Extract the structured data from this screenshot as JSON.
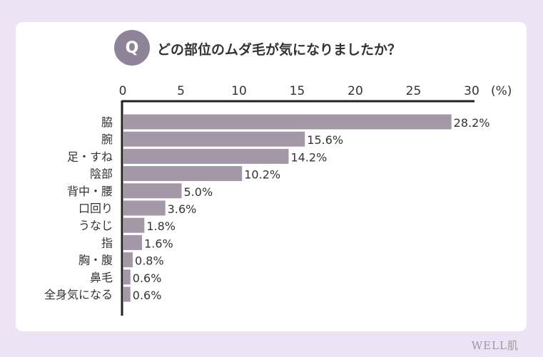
{
  "question": {
    "badge": "Q",
    "text": "どの部位のムダ毛が気になりましたか？"
  },
  "brand": "WELL肌",
  "colors": {
    "bar": "#a497a8",
    "badge": "#8f8399",
    "background": "#ece4f5",
    "card": "#ffffff"
  },
  "chart_data": {
    "type": "bar",
    "orientation": "horizontal",
    "title": "どの部位のムダ毛が気になりましたか？",
    "unit": "(%)",
    "xlim": [
      0,
      30
    ],
    "ticks": [
      0,
      5,
      10,
      15,
      20,
      25,
      30
    ],
    "categories": [
      "脇",
      "腕",
      "足・すね",
      "陰部",
      "背中・腰",
      "口回り",
      "うなじ",
      "指",
      "胸・腹",
      "鼻毛",
      "全身気になる"
    ],
    "values": [
      28.2,
      15.6,
      14.2,
      10.2,
      5.0,
      3.6,
      1.8,
      1.6,
      0.8,
      0.6,
      0.6
    ],
    "labels": [
      "28.2%",
      "15.6%",
      "14.2%",
      "10.2%",
      "5.0%",
      "3.6%",
      "1.8%",
      "1.6%",
      "0.8%",
      "0.6%",
      "0.6%"
    ],
    "grid": false
  }
}
